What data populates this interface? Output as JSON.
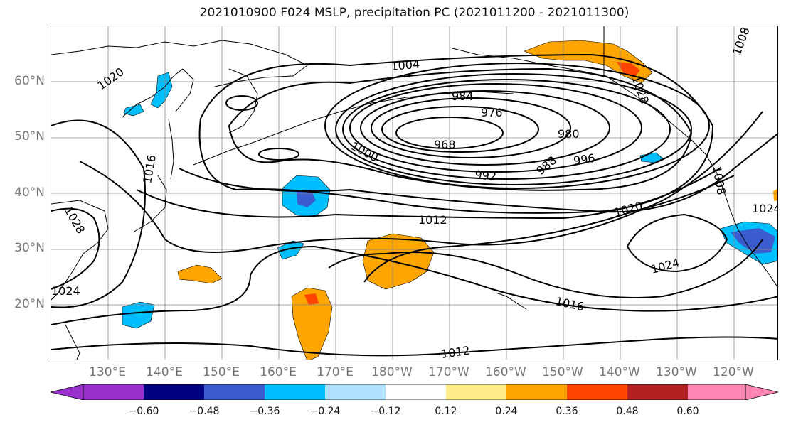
{
  "title": "2021010900 F024 MSLP, precipitation PC (2021011200 - 2021011300)",
  "lat_labels": [
    {
      "text": "60°N",
      "lat": 60
    },
    {
      "text": "50°N",
      "lat": 50
    },
    {
      "text": "40°N",
      "lat": 40
    },
    {
      "text": "30°N",
      "lat": 30
    },
    {
      "text": "20°N",
      "lat": 20
    }
  ],
  "lon_labels": [
    {
      "text": "130°E",
      "lon": 130
    },
    {
      "text": "140°E",
      "lon": 140
    },
    {
      "text": "150°E",
      "lon": 150
    },
    {
      "text": "160°E",
      "lon": 160
    },
    {
      "text": "170°E",
      "lon": 170
    },
    {
      "text": "180°W",
      "lon": 180
    },
    {
      "text": "170°W",
      "lon": 190
    },
    {
      "text": "160°W",
      "lon": 200
    },
    {
      "text": "150°W",
      "lon": 210
    },
    {
      "text": "140°W",
      "lon": 220
    },
    {
      "text": "130°W",
      "lon": 230
    },
    {
      "text": "120°W",
      "lon": 240
    }
  ],
  "extent": {
    "lon_min": 120,
    "lon_max": 248,
    "lat_min": 10,
    "lat_max": 70
  },
  "contour_labels": [
    "1004",
    "1020",
    "984",
    "976",
    "968",
    "980",
    "1000",
    "988",
    "996",
    "992",
    "1016",
    "1012",
    "1020",
    "1024",
    "1024",
    "1016",
    "1012",
    "1028",
    "1008",
    "1028",
    "1024",
    "1008"
  ],
  "colorbar": {
    "ticks": [
      "−0.60",
      "−0.48",
      "−0.36",
      "−0.24",
      "−0.12",
      "0.12",
      "0.24",
      "0.36",
      "0.48",
      "0.60"
    ],
    "colors": [
      "#9932cc",
      "#000080",
      "#3a5ccc",
      "#00bfff",
      "#b0e2ff",
      "#ffffff",
      "#ffec8b",
      "#ffa500",
      "#ff4500",
      "#b22222",
      "#ff86b4",
      "#ff86b4"
    ]
  },
  "colors": {
    "dry_strong": "#3a5ccc",
    "dry_medium": "#00bfff",
    "dry_light": "#b0e2ff",
    "wet_light": "#ffec8b",
    "wet_medium": "#ffa500",
    "wet_strong": "#ff4500"
  }
}
